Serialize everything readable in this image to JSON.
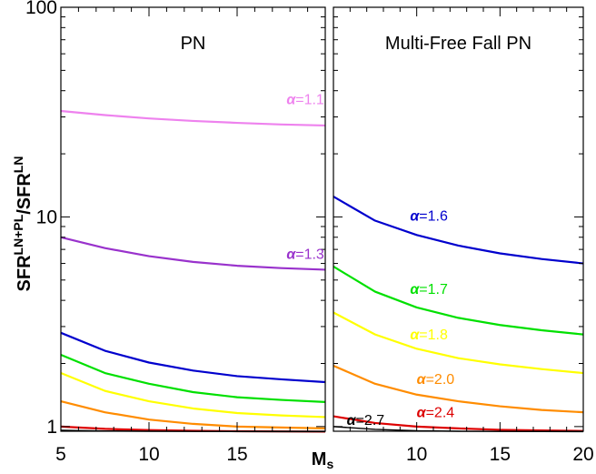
{
  "chart_data": [
    {
      "type": "line",
      "title": "PN",
      "xlabel": "",
      "ylabel": "SFR^{LN+PL}/SFR^{LN}",
      "ylabel_parts": {
        "base1": "SFR",
        "sup1": "LN+PL",
        "slash": "/",
        "base2": "SFR",
        "sup2": "LN"
      },
      "yscale": "log",
      "xlim": [
        5,
        20
      ],
      "ylim": [
        0.95,
        100
      ],
      "x_ticks": [
        "5",
        "10",
        "15"
      ],
      "y_ticks": [
        {
          "value": 1,
          "label": "1"
        },
        {
          "value": 10,
          "label": "10"
        },
        {
          "value": 100,
          "label": "100"
        }
      ],
      "x": [
        5,
        7.5,
        10,
        12.5,
        15,
        17.5,
        20
      ],
      "series": [
        {
          "color": "#ee82ee",
          "values": [
            32.0,
            30.6,
            29.5,
            28.7,
            28.1,
            27.6,
            27.3
          ],
          "label": {
            "greek": "α",
            "text": "=1.1",
            "at": [
              17.8,
              34.5
            ]
          }
        },
        {
          "color": "#9932cc",
          "values": [
            8.0,
            7.1,
            6.5,
            6.1,
            5.85,
            5.7,
            5.6
          ],
          "label": {
            "greek": "α",
            "text": "=1.3",
            "at": [
              17.8,
              6.3
            ]
          }
        },
        {
          "color": "#0000cd",
          "values": [
            2.8,
            2.3,
            2.02,
            1.85,
            1.74,
            1.68,
            1.63
          ]
        },
        {
          "color": "#00e000",
          "values": [
            2.2,
            1.8,
            1.6,
            1.46,
            1.38,
            1.34,
            1.31
          ]
        },
        {
          "color": "#ffff00",
          "values": [
            1.8,
            1.48,
            1.32,
            1.22,
            1.16,
            1.13,
            1.11
          ]
        },
        {
          "color": "#ff8c00",
          "values": [
            1.32,
            1.17,
            1.08,
            1.03,
            1.0,
            0.99,
            0.98
          ]
        },
        {
          "color": "#dd0000",
          "values": [
            1.0,
            0.975,
            0.962,
            0.955,
            0.95,
            0.948,
            0.946
          ]
        },
        {
          "color": "#000000",
          "values": [
            0.96,
            0.953,
            0.95,
            0.948,
            0.947,
            0.946,
            0.946
          ]
        }
      ]
    },
    {
      "type": "line",
      "title": "Multi-Free Fall PN",
      "xlabel": "M_s",
      "xlabel_parts": {
        "base": "M",
        "sub": "s"
      },
      "yscale": "log",
      "xlim": [
        5,
        20
      ],
      "ylim": [
        0.95,
        100
      ],
      "x_ticks": [
        "10",
        "15",
        "20"
      ],
      "x": [
        5,
        7.5,
        10,
        12.5,
        15,
        17.5,
        20
      ],
      "series": [
        {
          "color": "#0000cd",
          "values": [
            12.5,
            9.6,
            8.2,
            7.3,
            6.7,
            6.3,
            6.0
          ],
          "label": {
            "greek": "α",
            "text": "=1.6",
            "at": [
              9.6,
              9.6
            ]
          }
        },
        {
          "color": "#00e000",
          "values": [
            5.8,
            4.4,
            3.7,
            3.3,
            3.05,
            2.88,
            2.75
          ],
          "label": {
            "greek": "α",
            "text": "=1.7",
            "at": [
              9.6,
              4.3
            ]
          }
        },
        {
          "color": "#ffff00",
          "values": [
            3.5,
            2.75,
            2.35,
            2.12,
            1.98,
            1.88,
            1.8
          ],
          "label": {
            "greek": "α",
            "text": "=1.8",
            "at": [
              9.6,
              2.6
            ]
          }
        },
        {
          "color": "#ff8c00",
          "values": [
            1.95,
            1.6,
            1.42,
            1.32,
            1.25,
            1.2,
            1.17
          ],
          "label": {
            "greek": "α",
            "text": "=2.0",
            "at": [
              10.0,
              1.6
            ]
          }
        },
        {
          "color": "#dd0000",
          "values": [
            1.12,
            1.04,
            1.0,
            0.98,
            0.965,
            0.958,
            0.953
          ],
          "label": {
            "greek": "α",
            "text": "=2.4",
            "at": [
              10.0,
              1.11
            ]
          }
        },
        {
          "color": "#000000",
          "values": [
            1.0,
            0.97,
            0.955,
            0.95,
            0.948,
            0.947,
            0.946
          ],
          "label": {
            "greek": "α",
            "text": "=2.7",
            "at": [
              5.8,
              1.02
            ]
          }
        }
      ]
    }
  ]
}
